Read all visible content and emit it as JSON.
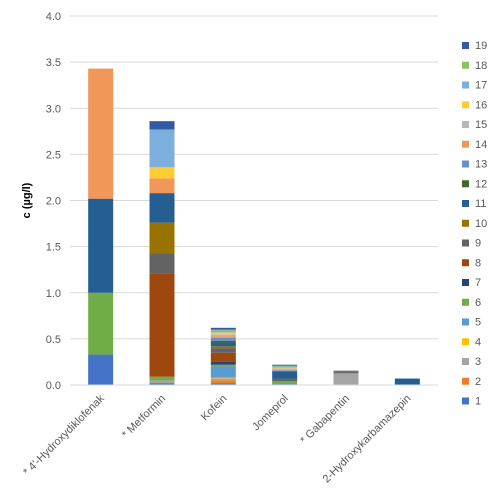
{
  "chart_data": {
    "type": "stacked-bar",
    "ylabel": "c (µg/l)",
    "ylim": [
      0,
      4.0
    ],
    "yticks": [
      "0.0",
      "0.5",
      "1.0",
      "1.5",
      "2.0",
      "2.5",
      "3.0",
      "3.5",
      "4.0"
    ],
    "grid": true,
    "legend_position": "right",
    "categories": [
      "* 4'-Hydroxydiklofenak",
      "* Metformin",
      "Kofein",
      "Jomeprol",
      "* Gabapentin",
      "2-Hydroxykarbamazepin"
    ],
    "series": [
      {
        "name": "1",
        "color": "#4472c4",
        "values": [
          0.33,
          0.02,
          0.02,
          0.01,
          0.0,
          0.0
        ]
      },
      {
        "name": "2",
        "color": "#ed7d31",
        "values": [
          0.0,
          0.0,
          0.03,
          0.0,
          0.0,
          0.0
        ]
      },
      {
        "name": "3",
        "color": "#a5a5a5",
        "values": [
          0.0,
          0.03,
          0.02,
          0.0,
          0.12,
          0.0
        ]
      },
      {
        "name": "4",
        "color": "#ffc000",
        "values": [
          0.0,
          0.0,
          0.01,
          0.0,
          0.0,
          0.0
        ]
      },
      {
        "name": "5",
        "color": "#5b9bd5",
        "values": [
          0.0,
          0.0,
          0.12,
          0.0,
          0.0,
          0.0
        ]
      },
      {
        "name": "6",
        "color": "#70ad47",
        "values": [
          0.67,
          0.04,
          0.02,
          0.03,
          0.01,
          0.0
        ]
      },
      {
        "name": "7",
        "color": "#264478",
        "values": [
          0.0,
          0.0,
          0.03,
          0.0,
          0.0,
          0.0
        ]
      },
      {
        "name": "8",
        "color": "#9e480e",
        "values": [
          0.0,
          1.12,
          0.1,
          0.0,
          0.0,
          0.0
        ]
      },
      {
        "name": "9",
        "color": "#636363",
        "values": [
          0.0,
          0.22,
          0.05,
          0.03,
          0.01,
          0.0
        ]
      },
      {
        "name": "10",
        "color": "#997300",
        "values": [
          0.0,
          0.33,
          0.02,
          0.0,
          0.0,
          0.0
        ]
      },
      {
        "name": "11",
        "color": "#255e91",
        "values": [
          1.02,
          0.32,
          0.04,
          0.08,
          0.01,
          0.07
        ]
      },
      {
        "name": "12",
        "color": "#43682b",
        "values": [
          0.0,
          0.0,
          0.02,
          0.0,
          0.0,
          0.0
        ]
      },
      {
        "name": "13",
        "color": "#698ed0",
        "values": [
          0.0,
          0.0,
          0.03,
          0.01,
          0.0,
          0.0
        ]
      },
      {
        "name": "14",
        "color": "#f1975a",
        "values": [
          1.41,
          0.16,
          0.02,
          0.01,
          0.0,
          0.0
        ]
      },
      {
        "name": "15",
        "color": "#b7b7b7",
        "values": [
          0.0,
          0.0,
          0.02,
          0.01,
          0.01,
          0.0
        ]
      },
      {
        "name": "16",
        "color": "#ffcd33",
        "values": [
          0.0,
          0.12,
          0.02,
          0.01,
          0.0,
          0.0
        ]
      },
      {
        "name": "17",
        "color": "#7cafdd",
        "values": [
          0.0,
          0.41,
          0.02,
          0.01,
          0.0,
          0.0
        ]
      },
      {
        "name": "18",
        "color": "#8cc168",
        "values": [
          0.0,
          0.0,
          0.01,
          0.01,
          0.0,
          0.0
        ]
      },
      {
        "name": "19",
        "color": "#335aa1",
        "values": [
          0.0,
          0.09,
          0.02,
          0.01,
          0.0,
          0.0
        ]
      }
    ]
  }
}
